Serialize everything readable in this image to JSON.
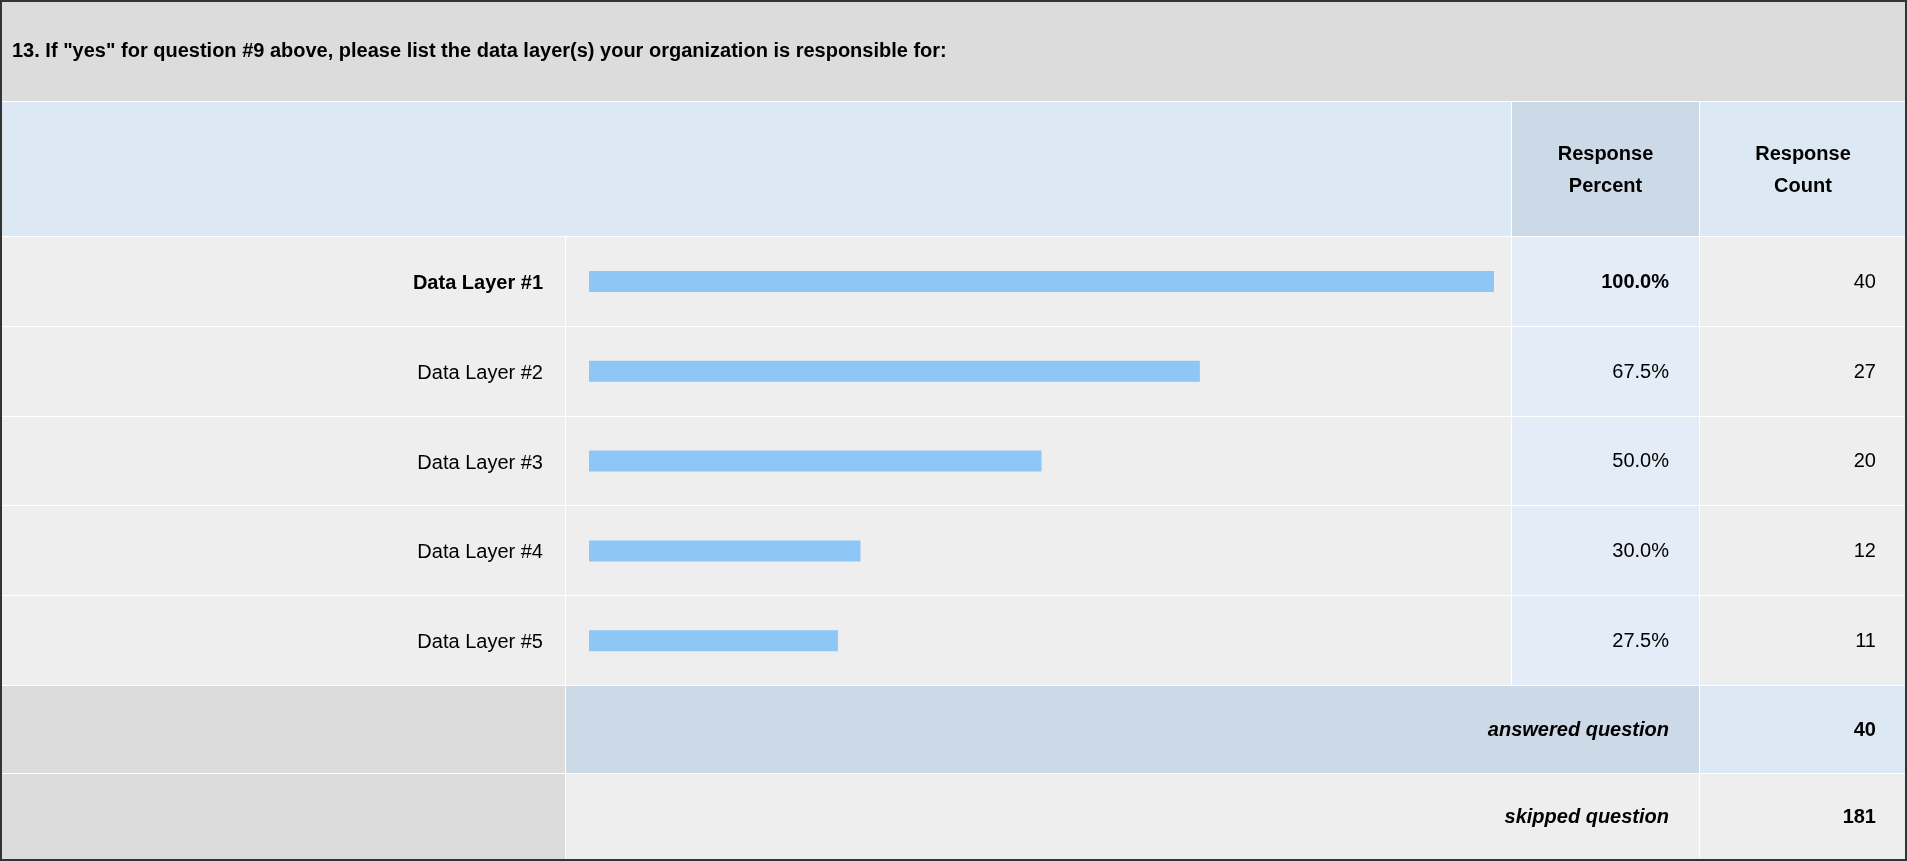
{
  "chart_data": {
    "type": "bar",
    "orientation": "horizontal",
    "title": "13. If \"yes\" for question #9 above, please list the data layer(s) your organization is responsible for:",
    "xlabel": "Response Percent",
    "categories": [
      "Data Layer #1",
      "Data Layer #2",
      "Data Layer #3",
      "Data Layer #4",
      "Data Layer #5"
    ],
    "values": [
      100,
      67.5,
      50,
      30,
      27.5
    ],
    "value_labels": [
      "100.0%",
      "67.5%",
      "50.0%",
      "30.0%",
      "27.5%"
    ],
    "color": "#8ec6f5",
    "annotations": [
      "Response Count",
      "40",
      "27",
      "20",
      "12",
      "11",
      "answered question",
      "40",
      "skipped question",
      "181"
    ],
    "grid": false,
    "legend": false
  }
}
